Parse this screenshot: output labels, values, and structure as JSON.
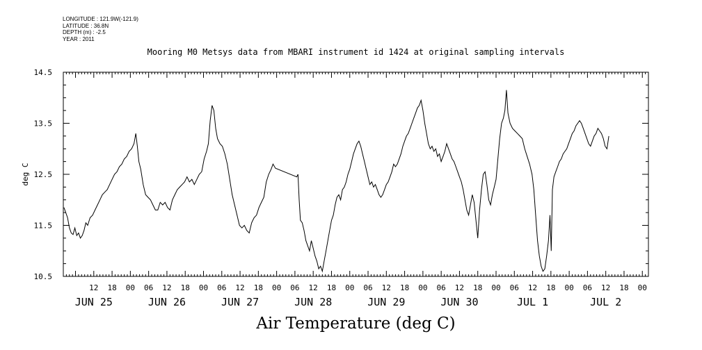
{
  "meta": {
    "longitude": "LONGITUDE : 121.9W(-121.9)",
    "latitude": "LATITUDE : 36.8N",
    "depth": "DEPTH (m) : -2.5",
    "year": "YEAR : 2011"
  },
  "chart_data": {
    "type": "line",
    "title": "Mooring M0 Metsys data from MBARI instrument id 1424 at original sampling intervals",
    "xlabel": "Air Temperature (deg C)",
    "ylabel": "deg C",
    "ylim": [
      10.5,
      14.5
    ],
    "xlim": [
      2.0,
      194.0
    ],
    "yticks": [
      "10.5",
      "11.5",
      "12.5",
      "13.5",
      "14.5"
    ],
    "hour_ticks": [
      {
        "x": 12,
        "label": "12"
      },
      {
        "x": 18,
        "label": "18"
      },
      {
        "x": 24,
        "label": "00"
      },
      {
        "x": 30,
        "label": "06"
      },
      {
        "x": 36,
        "label": "12"
      },
      {
        "x": 42,
        "label": "18"
      },
      {
        "x": 48,
        "label": "00"
      },
      {
        "x": 54,
        "label": "06"
      },
      {
        "x": 60,
        "label": "12"
      },
      {
        "x": 66,
        "label": "18"
      },
      {
        "x": 72,
        "label": "00"
      },
      {
        "x": 78,
        "label": "06"
      },
      {
        "x": 84,
        "label": "12"
      },
      {
        "x": 90,
        "label": "18"
      },
      {
        "x": 96,
        "label": "00"
      },
      {
        "x": 102,
        "label": "06"
      },
      {
        "x": 108,
        "label": "12"
      },
      {
        "x": 114,
        "label": "18"
      },
      {
        "x": 120,
        "label": "00"
      },
      {
        "x": 126,
        "label": "06"
      },
      {
        "x": 132,
        "label": "12"
      },
      {
        "x": 138,
        "label": "18"
      },
      {
        "x": 144,
        "label": "00"
      },
      {
        "x": 150,
        "label": "06"
      },
      {
        "x": 156,
        "label": "12"
      },
      {
        "x": 162,
        "label": "18"
      },
      {
        "x": 168,
        "label": "00"
      },
      {
        "x": 174,
        "label": "06"
      },
      {
        "x": 180,
        "label": "12"
      },
      {
        "x": 186,
        "label": "18"
      },
      {
        "x": 192,
        "label": "00"
      }
    ],
    "day_labels": [
      {
        "x": 12,
        "label": "JUN 25"
      },
      {
        "x": 36,
        "label": "JUN 26"
      },
      {
        "x": 60,
        "label": "JUN 27"
      },
      {
        "x": 84,
        "label": "JUN 28"
      },
      {
        "x": 108,
        "label": "JUN 29"
      },
      {
        "x": 132,
        "label": "JUN 30"
      },
      {
        "x": 156,
        "label": "JUL  1"
      },
      {
        "x": 180,
        "label": "JUL  2"
      }
    ],
    "series": [
      {
        "values": [
          [
            2.2,
            11.85
          ],
          [
            2.8,
            11.75
          ],
          [
            3.4,
            11.65
          ],
          [
            4.0,
            11.45
          ],
          [
            4.6,
            11.35
          ],
          [
            5.2,
            11.32
          ],
          [
            5.8,
            11.45
          ],
          [
            6.4,
            11.3
          ],
          [
            7.0,
            11.35
          ],
          [
            7.6,
            11.25
          ],
          [
            8.2,
            11.3
          ],
          [
            8.8,
            11.4
          ],
          [
            9.4,
            11.55
          ],
          [
            10.0,
            11.5
          ],
          [
            10.8,
            11.65
          ],
          [
            11.6,
            11.7
          ],
          [
            12.4,
            11.8
          ],
          [
            13.2,
            11.9
          ],
          [
            14.0,
            12.0
          ],
          [
            14.8,
            12.1
          ],
          [
            15.6,
            12.15
          ],
          [
            16.4,
            12.2
          ],
          [
            17.2,
            12.3
          ],
          [
            18.0,
            12.4
          ],
          [
            18.8,
            12.5
          ],
          [
            19.6,
            12.55
          ],
          [
            20.4,
            12.65
          ],
          [
            21.2,
            12.7
          ],
          [
            22.0,
            12.8
          ],
          [
            22.8,
            12.85
          ],
          [
            23.6,
            12.95
          ],
          [
            24.4,
            13.0
          ],
          [
            25.2,
            13.1
          ],
          [
            25.8,
            13.3
          ],
          [
            26.3,
            13.05
          ],
          [
            26.8,
            12.75
          ],
          [
            27.4,
            12.6
          ],
          [
            28.2,
            12.3
          ],
          [
            29.0,
            12.1
          ],
          [
            29.8,
            12.05
          ],
          [
            30.6,
            12.0
          ],
          [
            31.4,
            11.9
          ],
          [
            32.2,
            11.8
          ],
          [
            33.0,
            11.8
          ],
          [
            33.8,
            11.95
          ],
          [
            34.6,
            11.9
          ],
          [
            35.4,
            11.95
          ],
          [
            36.2,
            11.85
          ],
          [
            37.0,
            11.8
          ],
          [
            37.8,
            12.0
          ],
          [
            38.6,
            12.1
          ],
          [
            39.4,
            12.2
          ],
          [
            40.2,
            12.25
          ],
          [
            41.0,
            12.3
          ],
          [
            41.8,
            12.35
          ],
          [
            42.6,
            12.45
          ],
          [
            43.4,
            12.35
          ],
          [
            44.2,
            12.4
          ],
          [
            45.0,
            12.3
          ],
          [
            45.8,
            12.4
          ],
          [
            46.6,
            12.5
          ],
          [
            47.4,
            12.55
          ],
          [
            48.2,
            12.8
          ],
          [
            49.0,
            12.95
          ],
          [
            49.6,
            13.1
          ],
          [
            50.2,
            13.55
          ],
          [
            50.8,
            13.85
          ],
          [
            51.4,
            13.75
          ],
          [
            52.0,
            13.4
          ],
          [
            52.6,
            13.2
          ],
          [
            53.4,
            13.1
          ],
          [
            54.2,
            13.05
          ],
          [
            55.0,
            12.9
          ],
          [
            55.8,
            12.7
          ],
          [
            56.6,
            12.4
          ],
          [
            57.4,
            12.1
          ],
          [
            58.2,
            11.9
          ],
          [
            59.0,
            11.7
          ],
          [
            59.8,
            11.5
          ],
          [
            60.6,
            11.45
          ],
          [
            61.4,
            11.5
          ],
          [
            62.2,
            11.4
          ],
          [
            63.0,
            11.35
          ],
          [
            63.8,
            11.55
          ],
          [
            64.6,
            11.65
          ],
          [
            65.4,
            11.7
          ],
          [
            66.2,
            11.85
          ],
          [
            67.0,
            11.95
          ],
          [
            67.8,
            12.05
          ],
          [
            68.6,
            12.35
          ],
          [
            69.4,
            12.5
          ],
          [
            70.2,
            12.6
          ],
          [
            70.8,
            12.7
          ],
          [
            71.6,
            12.62
          ],
          [
            78.6,
            12.45
          ],
          [
            79.0,
            12.5
          ],
          [
            79.4,
            12.0
          ],
          [
            79.8,
            11.6
          ],
          [
            80.4,
            11.55
          ],
          [
            81.0,
            11.4
          ],
          [
            81.6,
            11.2
          ],
          [
            82.2,
            11.1
          ],
          [
            82.8,
            11.0
          ],
          [
            83.4,
            11.2
          ],
          [
            84.0,
            11.05
          ],
          [
            84.6,
            10.9
          ],
          [
            85.2,
            10.8
          ],
          [
            85.8,
            10.65
          ],
          [
            86.4,
            10.7
          ],
          [
            87.0,
            10.6
          ],
          [
            87.6,
            10.8
          ],
          [
            88.2,
            11.0
          ],
          [
            88.8,
            11.2
          ],
          [
            89.4,
            11.4
          ],
          [
            90.0,
            11.6
          ],
          [
            90.6,
            11.7
          ],
          [
            91.2,
            11.9
          ],
          [
            91.8,
            12.05
          ],
          [
            92.4,
            12.1
          ],
          [
            93.0,
            12.0
          ],
          [
            93.6,
            12.2
          ],
          [
            94.2,
            12.25
          ],
          [
            94.8,
            12.35
          ],
          [
            95.4,
            12.5
          ],
          [
            96.0,
            12.6
          ],
          [
            96.6,
            12.75
          ],
          [
            97.2,
            12.9
          ],
          [
            97.8,
            13.0
          ],
          [
            98.4,
            13.1
          ],
          [
            99.0,
            13.15
          ],
          [
            99.6,
            13.05
          ],
          [
            100.2,
            12.9
          ],
          [
            100.8,
            12.75
          ],
          [
            101.4,
            12.6
          ],
          [
            102.0,
            12.45
          ],
          [
            102.6,
            12.3
          ],
          [
            103.2,
            12.35
          ],
          [
            103.8,
            12.25
          ],
          [
            104.4,
            12.3
          ],
          [
            105.0,
            12.2
          ],
          [
            105.6,
            12.1
          ],
          [
            106.2,
            12.05
          ],
          [
            106.8,
            12.1
          ],
          [
            107.4,
            12.2
          ],
          [
            108.0,
            12.3
          ],
          [
            108.6,
            12.35
          ],
          [
            109.2,
            12.45
          ],
          [
            109.8,
            12.55
          ],
          [
            110.4,
            12.7
          ],
          [
            111.0,
            12.65
          ],
          [
            111.6,
            12.7
          ],
          [
            112.2,
            12.8
          ],
          [
            112.8,
            12.9
          ],
          [
            113.4,
            13.05
          ],
          [
            114.0,
            13.15
          ],
          [
            114.6,
            13.25
          ],
          [
            115.2,
            13.3
          ],
          [
            115.8,
            13.4
          ],
          [
            116.4,
            13.5
          ],
          [
            117.0,
            13.6
          ],
          [
            117.6,
            13.7
          ],
          [
            118.2,
            13.8
          ],
          [
            118.8,
            13.85
          ],
          [
            119.4,
            13.95
          ],
          [
            120.0,
            13.75
          ],
          [
            120.6,
            13.5
          ],
          [
            121.2,
            13.3
          ],
          [
            121.8,
            13.1
          ],
          [
            122.4,
            13.0
          ],
          [
            123.0,
            13.05
          ],
          [
            123.6,
            12.95
          ],
          [
            124.2,
            13.0
          ],
          [
            124.8,
            12.85
          ],
          [
            125.4,
            12.9
          ],
          [
            126.0,
            12.75
          ],
          [
            126.6,
            12.85
          ],
          [
            127.2,
            12.95
          ],
          [
            127.8,
            13.1
          ],
          [
            128.4,
            13.0
          ],
          [
            129.0,
            12.9
          ],
          [
            129.6,
            12.8
          ],
          [
            130.2,
            12.75
          ],
          [
            130.8,
            12.65
          ],
          [
            131.4,
            12.55
          ],
          [
            132.0,
            12.45
          ],
          [
            132.6,
            12.35
          ],
          [
            133.2,
            12.2
          ],
          [
            133.8,
            12.0
          ],
          [
            134.4,
            11.8
          ],
          [
            135.0,
            11.7
          ],
          [
            135.6,
            11.9
          ],
          [
            136.2,
            12.1
          ],
          [
            136.8,
            11.95
          ],
          [
            137.4,
            11.6
          ],
          [
            138.0,
            11.25
          ],
          [
            138.6,
            11.8
          ],
          [
            139.2,
            12.2
          ],
          [
            139.8,
            12.5
          ],
          [
            140.4,
            12.55
          ],
          [
            141.0,
            12.3
          ],
          [
            141.6,
            12.0
          ],
          [
            142.2,
            11.9
          ],
          [
            142.8,
            12.1
          ],
          [
            143.4,
            12.25
          ],
          [
            144.0,
            12.4
          ],
          [
            144.6,
            12.8
          ],
          [
            145.2,
            13.2
          ],
          [
            145.8,
            13.5
          ],
          [
            146.4,
            13.6
          ],
          [
            146.9,
            13.75
          ],
          [
            147.4,
            14.15
          ],
          [
            147.9,
            13.7
          ],
          [
            148.6,
            13.5
          ],
          [
            149.4,
            13.4
          ],
          [
            150.2,
            13.35
          ],
          [
            151.0,
            13.3
          ],
          [
            151.8,
            13.25
          ],
          [
            152.6,
            13.2
          ],
          [
            153.4,
            13.0
          ],
          [
            154.2,
            12.85
          ],
          [
            155.0,
            12.7
          ],
          [
            155.8,
            12.5
          ],
          [
            156.4,
            12.2
          ],
          [
            157.0,
            11.7
          ],
          [
            157.6,
            11.2
          ],
          [
            158.2,
            10.9
          ],
          [
            158.8,
            10.7
          ],
          [
            159.4,
            10.6
          ],
          [
            160.0,
            10.65
          ],
          [
            160.6,
            10.9
          ],
          [
            161.2,
            11.2
          ],
          [
            161.7,
            11.7
          ],
          [
            162.1,
            11.0
          ],
          [
            162.5,
            12.2
          ],
          [
            163.0,
            12.45
          ],
          [
            163.6,
            12.55
          ],
          [
            164.2,
            12.65
          ],
          [
            164.8,
            12.75
          ],
          [
            165.4,
            12.8
          ],
          [
            166.0,
            12.9
          ],
          [
            166.6,
            12.95
          ],
          [
            167.2,
            13.0
          ],
          [
            167.8,
            13.1
          ],
          [
            168.4,
            13.2
          ],
          [
            169.0,
            13.3
          ],
          [
            169.6,
            13.35
          ],
          [
            170.2,
            13.45
          ],
          [
            170.8,
            13.5
          ],
          [
            171.4,
            13.55
          ],
          [
            172.0,
            13.5
          ],
          [
            172.6,
            13.4
          ],
          [
            173.2,
            13.3
          ],
          [
            173.8,
            13.2
          ],
          [
            174.4,
            13.1
          ],
          [
            175.0,
            13.05
          ],
          [
            175.6,
            13.15
          ],
          [
            176.2,
            13.25
          ],
          [
            176.8,
            13.3
          ],
          [
            177.4,
            13.4
          ],
          [
            178.0,
            13.35
          ],
          [
            178.6,
            13.3
          ],
          [
            179.2,
            13.2
          ],
          [
            179.8,
            13.05
          ],
          [
            180.4,
            13.0
          ],
          [
            181.0,
            13.25
          ]
        ]
      }
    ]
  }
}
